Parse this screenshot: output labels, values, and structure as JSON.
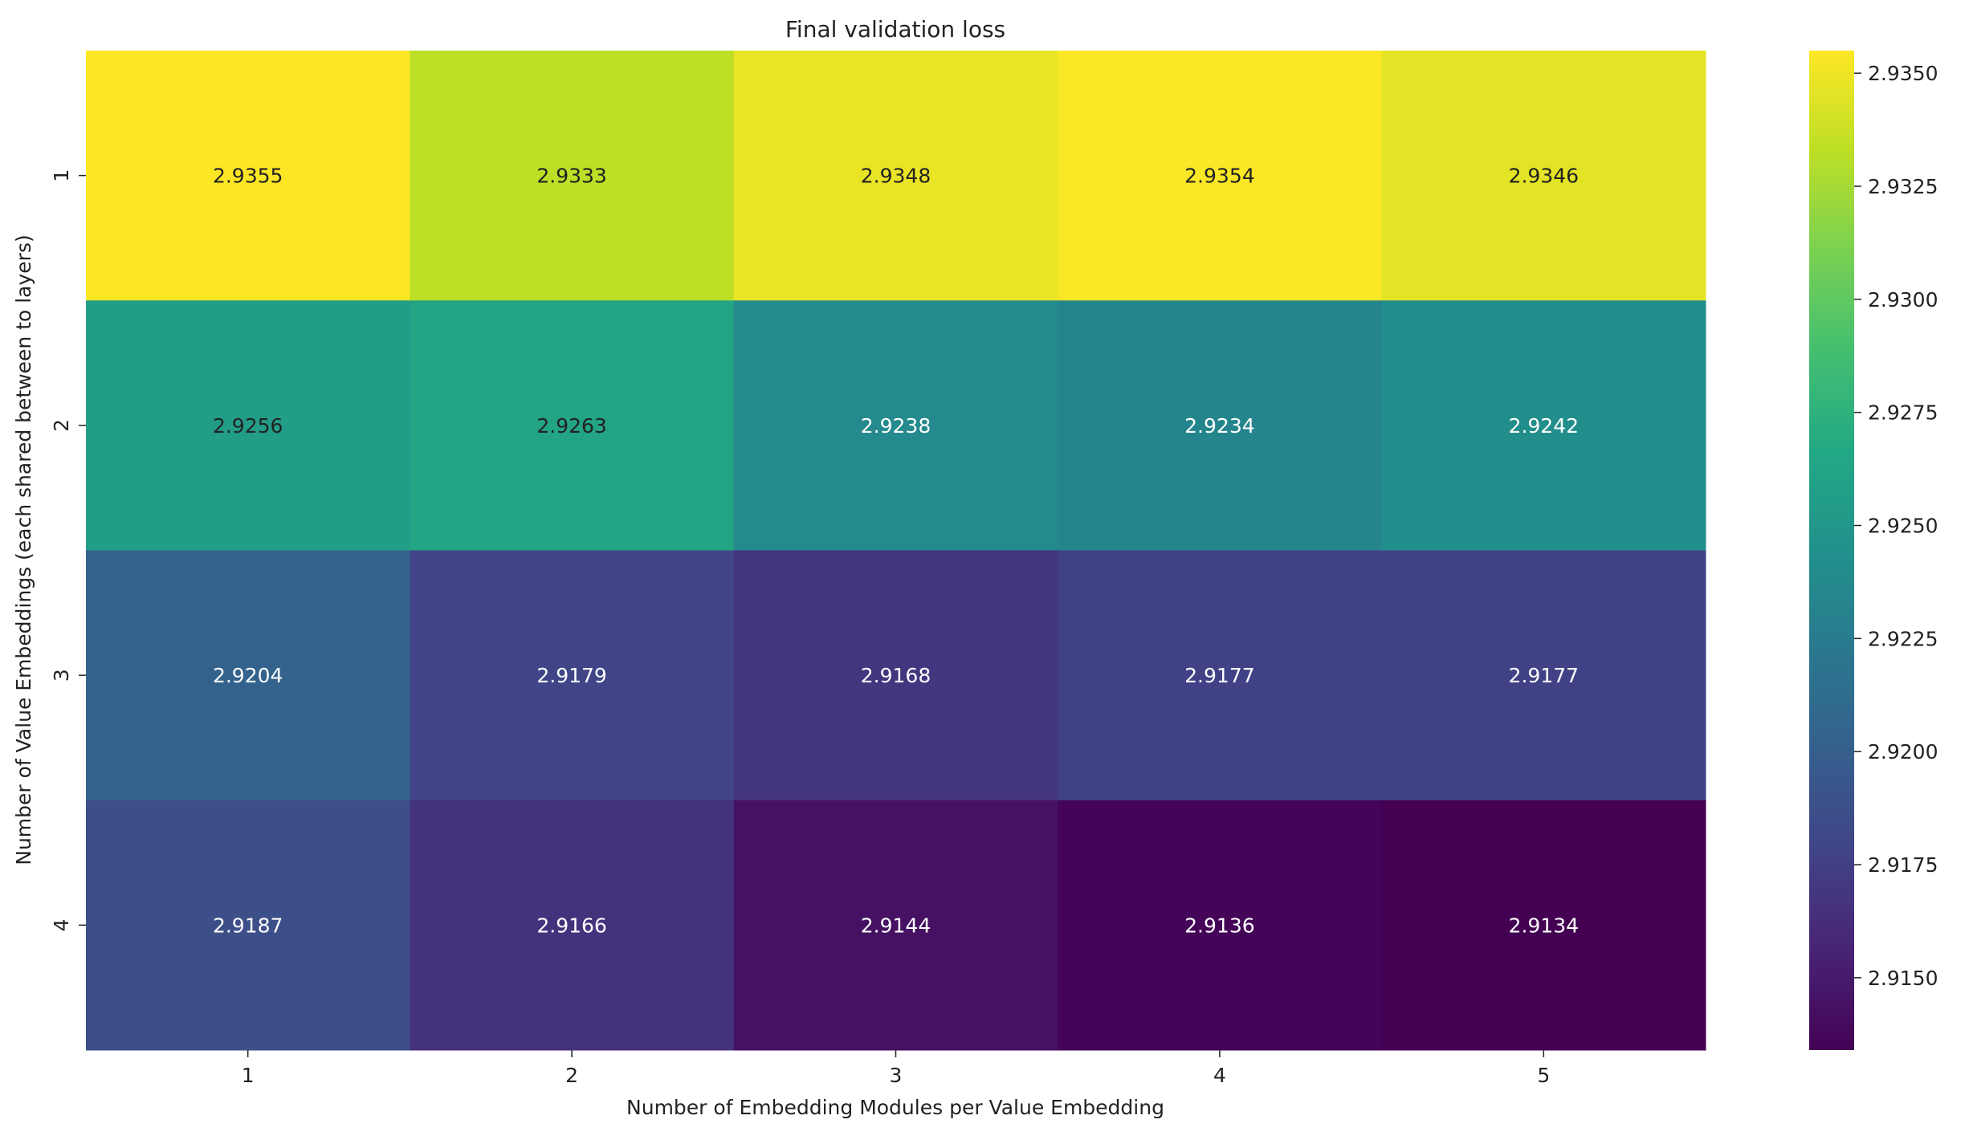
{
  "chart_data": {
    "type": "heatmap",
    "title": "Final validation loss",
    "xlabel": "Number of Embedding Modules per Value Embedding",
    "ylabel": "Number of Value Embeddings (each shared between to layers)",
    "x_categories": [
      "1",
      "2",
      "3",
      "4",
      "5"
    ],
    "y_categories": [
      "1",
      "2",
      "3",
      "4"
    ],
    "values": [
      [
        2.9355,
        2.9333,
        2.9348,
        2.9354,
        2.9346
      ],
      [
        2.9256,
        2.9263,
        2.9238,
        2.9234,
        2.9242
      ],
      [
        2.9204,
        2.9179,
        2.9168,
        2.9177,
        2.9177
      ],
      [
        2.9187,
        2.9166,
        2.9144,
        2.9136,
        2.9134
      ]
    ],
    "value_labels": [
      [
        "2.9355",
        "2.9333",
        "2.9348",
        "2.9354",
        "2.9346"
      ],
      [
        "2.9256",
        "2.9263",
        "2.9238",
        "2.9234",
        "2.9242"
      ],
      [
        "2.9204",
        "2.9179",
        "2.9168",
        "2.9177",
        "2.9177"
      ],
      [
        "2.9187",
        "2.9166",
        "2.9144",
        "2.9136",
        "2.9134"
      ]
    ],
    "colormap": "viridis",
    "colorbar": {
      "range": [
        2.9134,
        2.9355
      ],
      "ticks": [
        2.915,
        2.9175,
        2.92,
        2.9225,
        2.925,
        2.9275,
        2.93,
        2.9325,
        2.935
      ],
      "tick_labels": [
        "2.9150",
        "2.9175",
        "2.9200",
        "2.9225",
        "2.9250",
        "2.9275",
        "2.9300",
        "2.9325",
        "2.9350"
      ]
    },
    "annotation_colors": {
      "light_cells": "#222222",
      "dark_cells": "#ffffff"
    },
    "grid": false
  }
}
